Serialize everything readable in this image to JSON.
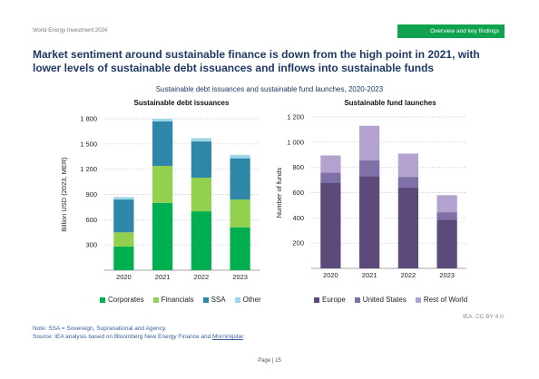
{
  "header": {
    "report": "World Energy Investment 2024",
    "section": "Overview and key findings"
  },
  "headline": "Market sentiment around sustainable finance is down from the high point in 2021, with lower levels of sustainable debt issuances and inflows into sustainable funds",
  "figure_title": "Sustainable debt issuances and sustainable fund launches, 2020-2023",
  "credit": "IEA. CC BY 4.0",
  "note_line1": "Note: SSA = Sovereign, Supranational and Agency.",
  "note_line2_prefix": "Source: IEA analysis based on Bloomberg New Energy Finance and ",
  "note_link": "Morningstar",
  "note_line2_suffix": ".",
  "page": "Page | 15",
  "colors": {
    "corporates": "#00b050",
    "financials": "#92d050",
    "ssa": "#2e86a8",
    "other": "#9dd6e8",
    "europe": "#5b4a7a",
    "united_states": "#8070a8",
    "rest_of_world": "#b3a2cf"
  },
  "chart_data": [
    {
      "type": "bar",
      "stacked": true,
      "title": "Sustainable debt issuances",
      "ylabel": "Billion USD (2023, MER)",
      "ylim": [
        0,
        1800
      ],
      "yticks": [
        300,
        600,
        900,
        1200,
        1500,
        1800
      ],
      "ytick_labels": [
        "300",
        "600",
        "900",
        "1 200",
        "1 500",
        "1 800"
      ],
      "categories": [
        "2020",
        "2021",
        "2022",
        "2023"
      ],
      "series": [
        {
          "name": "Corporates",
          "values": [
            280,
            800,
            700,
            510
          ]
        },
        {
          "name": "Financials",
          "values": [
            170,
            440,
            400,
            330
          ]
        },
        {
          "name": "SSA",
          "values": [
            390,
            530,
            430,
            490
          ]
        },
        {
          "name": "Other",
          "values": [
            30,
            30,
            40,
            40
          ]
        }
      ],
      "grid": true,
      "legend": "bottom"
    },
    {
      "type": "bar",
      "stacked": true,
      "title": "Sustainable fund launches",
      "ylabel": "Number of funds",
      "ylim": [
        0,
        1200
      ],
      "yticks": [
        200,
        400,
        600,
        800,
        1000,
        1200
      ],
      "ytick_labels": [
        "200",
        "400",
        "600",
        "800",
        "1 000",
        "1 200"
      ],
      "categories": [
        "2020",
        "2021",
        "2022",
        "2023"
      ],
      "series": [
        {
          "name": "Europe",
          "values": [
            680,
            730,
            640,
            385
          ]
        },
        {
          "name": "United States",
          "values": [
            80,
            125,
            85,
            60
          ]
        },
        {
          "name": "Rest of World",
          "values": [
            135,
            275,
            185,
            135
          ]
        }
      ],
      "grid": true,
      "legend": "bottom"
    }
  ]
}
